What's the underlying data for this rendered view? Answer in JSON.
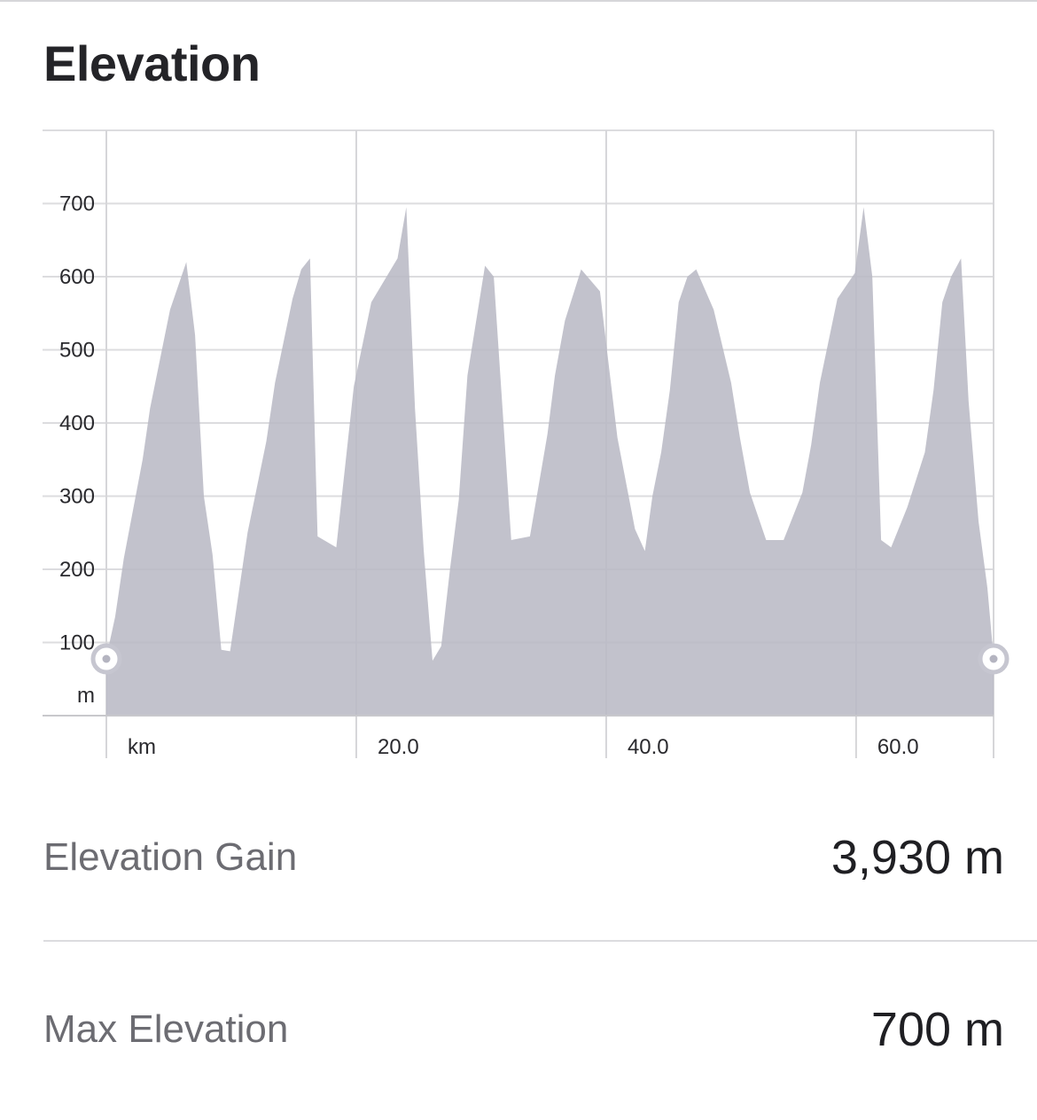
{
  "title": "Elevation",
  "chart_data": {
    "type": "area",
    "xlabel": "km",
    "ylabel": "m",
    "x_ticks": [
      {
        "value": 20,
        "label": "20.0"
      },
      {
        "value": 40,
        "label": "40.0"
      },
      {
        "value": 60,
        "label": "60.0"
      }
    ],
    "y_ticks": [
      100,
      200,
      300,
      400,
      500,
      600,
      700
    ],
    "xlim": [
      0,
      71
    ],
    "ylim": [
      0,
      800
    ],
    "grid": true,
    "fill_color": "#b9b9c5",
    "series": [
      {
        "x": [
          0,
          0.7,
          1.4,
          2.9,
          3.5,
          5.1,
          6.4,
          7.1,
          7.8,
          8.5,
          9.2,
          9.9,
          11.3,
          12.8,
          13.5,
          14.9,
          15.6,
          16.3,
          16.9,
          18.4,
          19.8,
          21.2,
          22.6,
          23.3,
          24.0,
          24.7,
          25.4,
          26.1,
          26.8,
          27.5,
          28.2,
          28.9,
          30.3,
          31.0,
          32.4,
          33.9,
          35.3,
          35.9,
          36.7,
          38.0,
          39.5,
          40.9,
          42.3,
          43.1,
          43.7,
          44.4,
          45.1,
          45.8,
          46.5,
          47.2,
          48.6,
          50.0,
          50.7,
          51.5,
          52.8,
          54.2,
          55.7,
          56.4,
          57.1,
          58.5,
          59.9,
          60.6,
          61.3,
          62.0,
          62.8,
          64.1,
          65.5,
          66.2,
          66.9,
          67.6,
          68.4,
          69.0,
          69.8,
          70.5,
          71.0
        ],
        "y": [
          80,
          135,
          215,
          350,
          420,
          555,
          620,
          520,
          300,
          220,
          90,
          88,
          250,
          375,
          455,
          570,
          610,
          625,
          245,
          230,
          450,
          565,
          605,
          625,
          695,
          420,
          225,
          75,
          95,
          200,
          295,
          465,
          615,
          600,
          240,
          245,
          385,
          465,
          540,
          610,
          580,
          380,
          255,
          225,
          300,
          360,
          445,
          565,
          600,
          610,
          555,
          455,
          380,
          305,
          240,
          240,
          305,
          370,
          455,
          570,
          605,
          695,
          600,
          240,
          230,
          285,
          360,
          445,
          565,
          600,
          625,
          430,
          265,
          175,
          80
        ]
      }
    ]
  },
  "stats": [
    {
      "label": "Elevation Gain",
      "value": "3,930 m"
    },
    {
      "label": "Max Elevation",
      "value": "700 m"
    }
  ]
}
